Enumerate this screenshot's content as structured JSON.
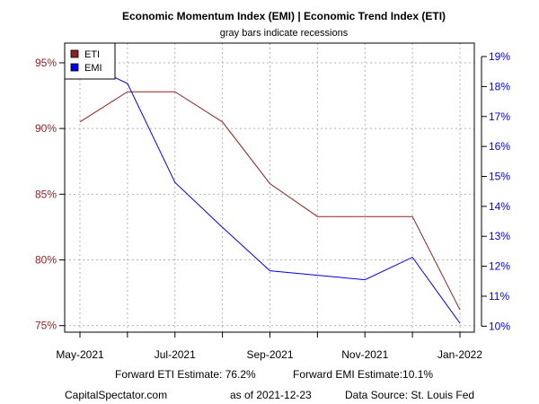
{
  "chart_data": {
    "type": "line",
    "title": "Economic Momentum Index (EMI) | Economic Trend Index (ETI)",
    "subtitle": "gray bars indicate recessions",
    "x": [
      "2021-05",
      "2021-06",
      "2021-07",
      "2021-08",
      "2021-09",
      "2021-10",
      "2021-11",
      "2021-12",
      "2022-01"
    ],
    "x_tick_labels": [
      "May-2021",
      "Jul-2021",
      "Sep-2021",
      "Nov-2021",
      "Jan-2022"
    ],
    "y_left": {
      "ylim": [
        74.5,
        96.5
      ],
      "ticks": [
        75,
        80,
        85,
        90,
        95
      ],
      "tick_labels": [
        "75%",
        "80%",
        "85%",
        "90%",
        "95%"
      ],
      "color": "#8B2323"
    },
    "y_right": {
      "ylim": [
        9.8,
        19.45
      ],
      "ticks": [
        10,
        11,
        12,
        13,
        14,
        15,
        16,
        17,
        18,
        19
      ],
      "tick_labels": [
        "10%",
        "11%",
        "12%",
        "13%",
        "14%",
        "15%",
        "16%",
        "17%",
        "18%",
        "19%"
      ],
      "color": "#0000EE"
    },
    "series": [
      {
        "name": "ETI",
        "axis": "left",
        "color": "#8B2323",
        "values": [
          90.5,
          92.8,
          92.8,
          90.5,
          85.8,
          83.3,
          83.3,
          83.3,
          76.2
        ]
      },
      {
        "name": "EMI",
        "axis": "right",
        "color": "#0000EE",
        "values": [
          18.85,
          18.1,
          14.8,
          13.3,
          11.85,
          11.7,
          11.55,
          12.3,
          10.1
        ]
      }
    ],
    "legend_position": "top-left",
    "grid": true
  },
  "footer": {
    "eti_estimate": "Forward ETI Estimate:  76.2%",
    "emi_estimate": "Forward EMI Estimate:10.1%",
    "source_site": "CapitalSpectator.com",
    "as_of": "as of 2021-12-23",
    "data_source": "Data Source: St. Louis Fed"
  }
}
